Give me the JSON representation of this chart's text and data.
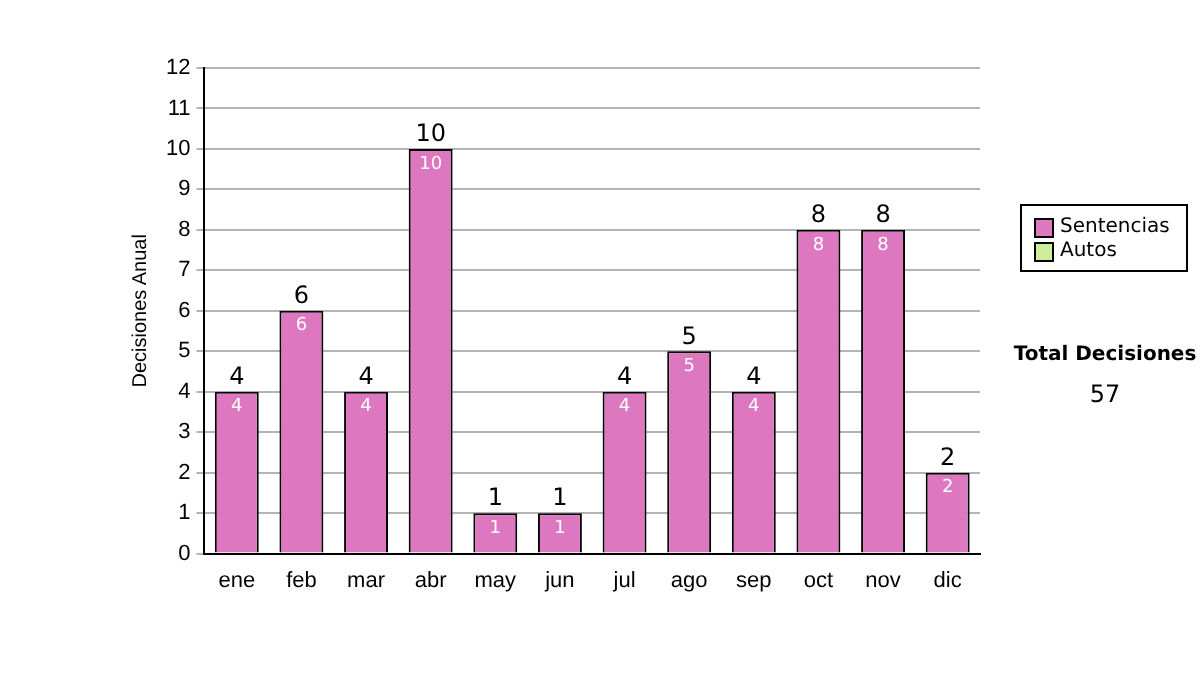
{
  "chart_data": {
    "type": "bar",
    "stacked": true,
    "ylabel": "Decisiones Anual",
    "categories": [
      "ene",
      "feb",
      "mar",
      "abr",
      "may",
      "jun",
      "jul",
      "ago",
      "sep",
      "oct",
      "nov",
      "dic"
    ],
    "series": [
      {
        "name": "Sentencias",
        "color": "#dd77c0",
        "values": [
          4,
          6,
          4,
          10,
          1,
          1,
          4,
          5,
          4,
          8,
          8,
          2
        ],
        "value_labels": [
          "4",
          "6",
          "4",
          "10",
          "1",
          "1",
          "4",
          "5",
          "4",
          "8",
          "8",
          "2"
        ]
      },
      {
        "name": "Autos",
        "color": "#ccee99",
        "values": [
          0,
          0,
          0,
          0,
          0,
          0,
          0,
          0,
          0,
          0,
          0,
          0
        ]
      }
    ],
    "totals": [
      "4",
      "6",
      "4",
      "10",
      "1",
      "1",
      "4",
      "5",
      "4",
      "8",
      "8",
      "2"
    ],
    "ylim": [
      0,
      12
    ],
    "yticks": [
      0,
      1,
      2,
      3,
      4,
      5,
      6,
      7,
      8,
      9,
      10,
      11,
      12
    ],
    "grid": "y",
    "legend": "right",
    "annotations": [
      "Total Decisiones",
      "57"
    ]
  }
}
